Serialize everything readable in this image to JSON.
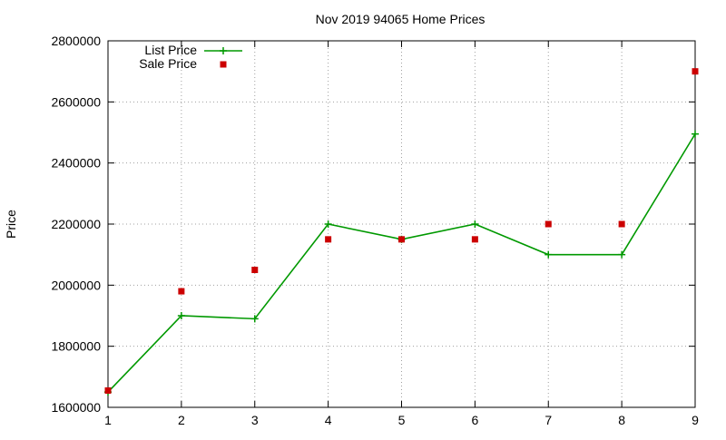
{
  "chart_data": {
    "type": "line",
    "title": "Nov 2019 94065 Home Prices",
    "xlabel": "",
    "ylabel": "Price",
    "xlim": [
      1,
      9
    ],
    "ylim": [
      1600000,
      2800000
    ],
    "xticks": [
      1,
      2,
      3,
      4,
      5,
      6,
      7,
      8,
      9
    ],
    "yticks": [
      1600000,
      1800000,
      2000000,
      2200000,
      2400000,
      2600000,
      2800000
    ],
    "grid": true,
    "legend_position": "top-left",
    "series": [
      {
        "name": "List Price",
        "style": "line-with-plus-markers",
        "color": "#009900",
        "x": [
          1,
          2,
          3,
          4,
          5,
          6,
          7,
          8,
          9
        ],
        "values": [
          1650000,
          1900000,
          1890000,
          2200000,
          2150000,
          2200000,
          2100000,
          2100000,
          2495000
        ]
      },
      {
        "name": "Sale Price",
        "style": "square-markers",
        "color": "#cc0000",
        "x": [
          1,
          2,
          3,
          4,
          5,
          6,
          7,
          8,
          9
        ],
        "values": [
          1655000,
          1980000,
          2050000,
          2150000,
          2150000,
          2150000,
          2200000,
          2200000,
          2700000
        ]
      }
    ]
  }
}
